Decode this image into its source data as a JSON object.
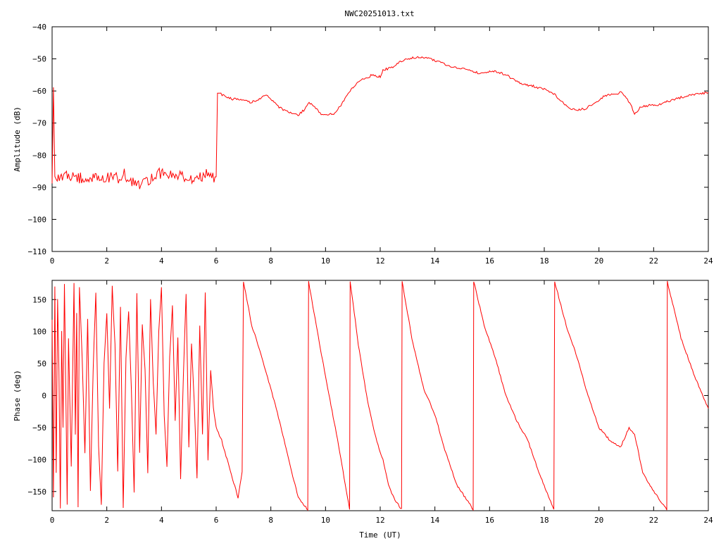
{
  "title": "NWC20251013.txt",
  "chart_data": [
    {
      "type": "line",
      "name": "amplitude-panel",
      "xlabel": "",
      "ylabel": "Amplitude (dB)",
      "xlim": [
        0,
        24
      ],
      "ylim": [
        -110,
        -40
      ],
      "xticks": [
        0,
        2,
        4,
        6,
        8,
        10,
        12,
        14,
        16,
        18,
        20,
        22,
        24
      ],
      "yticks": [
        -110,
        -100,
        -90,
        -80,
        -70,
        -60,
        -50,
        -40
      ],
      "ytick_labels": [
        "−110",
        "−100",
        "−90",
        "−80",
        "−70",
        "−60",
        "−50",
        "−40"
      ],
      "color": "#ff0000",
      "grid": false,
      "series": [
        {
          "x": [
            0.0,
            0.05,
            0.1,
            0.15,
            0.3,
            0.6,
            1.0,
            1.5,
            2.0,
            2.5,
            2.6,
            2.8,
            3.0,
            3.2,
            3.4,
            3.6,
            3.8,
            4.0,
            4.3,
            4.6,
            4.8,
            5.0,
            5.3,
            5.6,
            5.8,
            6.0,
            6.05,
            6.3,
            6.6,
            6.9,
            7.2,
            7.5,
            7.7,
            7.8,
            8.0,
            8.3,
            8.6,
            9.0,
            9.2,
            9.4,
            9.6,
            9.8,
            10.0,
            10.3,
            10.6,
            10.9,
            11.2,
            11.5,
            11.7,
            11.9,
            12.0,
            12.1,
            12.3,
            12.5,
            12.7,
            13.0,
            13.3,
            13.6,
            14.0,
            14.3,
            14.6,
            15.0,
            15.3,
            15.6,
            16.0,
            16.3,
            16.6,
            17.0,
            17.3,
            17.6,
            18.0,
            18.3,
            18.6,
            18.9,
            19.2,
            19.5,
            19.8,
            20.0,
            20.2,
            20.5,
            20.8,
            21.0,
            21.2,
            21.3,
            21.5,
            21.8,
            22.0,
            22.3,
            22.6,
            23.0,
            23.3,
            23.6,
            24.0
          ],
          "y": [
            -87,
            -60,
            -87,
            -86.5,
            -87.5,
            -86.5,
            -87,
            -86.8,
            -87.2,
            -87,
            -85,
            -87.5,
            -88.5,
            -89.5,
            -88.5,
            -87.5,
            -86,
            -85.5,
            -85.5,
            -86,
            -87,
            -87.5,
            -87.5,
            -86,
            -86.5,
            -87,
            -60.5,
            -61.5,
            -62.5,
            -62.5,
            -63.5,
            -63,
            -62,
            -61,
            -62.5,
            -65,
            -66.5,
            -67.5,
            -66,
            -63.5,
            -65,
            -67,
            -67.5,
            -67,
            -64,
            -60,
            -57,
            -56,
            -55,
            -55.5,
            -55.5,
            -53.5,
            -53,
            -52.5,
            -51,
            -50,
            -49.5,
            -49.5,
            -50.5,
            -51.5,
            -52.5,
            -53,
            -53.5,
            -54.5,
            -54,
            -54,
            -55,
            -57,
            -58,
            -58.5,
            -59.5,
            -60.5,
            -63,
            -65.5,
            -66,
            -65.5,
            -64,
            -63,
            -61.5,
            -61,
            -60.5,
            -62,
            -65,
            -67.5,
            -65,
            -64.5,
            -64.5,
            -64,
            -63,
            -62,
            -61.5,
            -61,
            -60.5
          ]
        }
      ]
    },
    {
      "type": "line",
      "name": "phase-panel",
      "xlabel": "Time (UT)",
      "ylabel": "Phase (deg)",
      "xlim": [
        0,
        24
      ],
      "ylim": [
        -180,
        180
      ],
      "xticks": [
        0,
        2,
        4,
        6,
        8,
        10,
        12,
        14,
        16,
        18,
        20,
        22,
        24
      ],
      "yticks": [
        -150,
        -100,
        -50,
        0,
        50,
        100,
        150
      ],
      "ytick_labels": [
        "−150",
        "−100",
        "−50",
        "0",
        "50",
        "100",
        "150"
      ],
      "color": "#ff0000",
      "grid": false,
      "series": [
        {
          "x": [
            0.0,
            0.05,
            0.1,
            0.15,
            0.2,
            0.25,
            0.3,
            0.35,
            0.4,
            0.45,
            0.5,
            0.55,
            0.6,
            0.7,
            0.8,
            0.85,
            0.9,
            0.95,
            1.0,
            1.1,
            1.2,
            1.3,
            1.4,
            1.5,
            1.6,
            1.7,
            1.8,
            1.9,
            2.0,
            2.1,
            2.2,
            2.3,
            2.4,
            2.5,
            2.6,
            2.7,
            2.8,
            2.9,
            3.0,
            3.1,
            3.2,
            3.3,
            3.4,
            3.5,
            3.6,
            3.7,
            3.8,
            3.9,
            4.0,
            4.1,
            4.2,
            4.3,
            4.4,
            4.5,
            4.6,
            4.7,
            4.8,
            4.9,
            5.0,
            5.1,
            5.2,
            5.3,
            5.4,
            5.5,
            5.6,
            5.7,
            5.8,
            5.9,
            6.0,
            6.2,
            6.4,
            6.6,
            6.8,
            6.95,
            7.0,
            7.3,
            7.6,
            7.8,
            8.2,
            8.6,
            9.0,
            9.35,
            9.38,
            9.7,
            10.0,
            10.4,
            10.88,
            10.9,
            11.2,
            11.5,
            11.8,
            12.0,
            12.1,
            12.3,
            12.5,
            12.78,
            12.8,
            13.2,
            13.6,
            14.0,
            14.4,
            14.8,
            15.4,
            15.42,
            15.8,
            16.2,
            16.6,
            17.0,
            17.4,
            17.8,
            18.35,
            18.38,
            18.8,
            19.2,
            19.6,
            20.0,
            20.4,
            20.8,
            21.1,
            21.3,
            21.6,
            22.0,
            22.48,
            22.5,
            23.0,
            23.5,
            24.0
          ],
          "y": [
            120,
            -160,
            170,
            -120,
            150,
            40,
            -175,
            100,
            -50,
            175,
            20,
            -170,
            90,
            -110,
            175,
            -60,
            130,
            -175,
            170,
            60,
            -90,
            120,
            -150,
            40,
            160,
            -80,
            -170,
            50,
            130,
            -20,
            170,
            80,
            -120,
            140,
            -175,
            60,
            130,
            10,
            -150,
            160,
            -90,
            110,
            40,
            -120,
            150,
            20,
            -60,
            100,
            170,
            -30,
            -110,
            60,
            140,
            -40,
            90,
            -130,
            30,
            160,
            -80,
            80,
            -10,
            -130,
            110,
            -60,
            160,
            -100,
            40,
            -20,
            -50,
            -70,
            -100,
            -130,
            -160,
            -120,
            178,
            110,
            70,
            40,
            -20,
            -90,
            -160,
            -178,
            178,
            100,
            30,
            -60,
            -178,
            178,
            80,
            0,
            -60,
            -90,
            -100,
            -140,
            -160,
            -178,
            178,
            80,
            10,
            -30,
            -90,
            -140,
            -178,
            178,
            110,
            60,
            0,
            -40,
            -70,
            -120,
            -178,
            178,
            110,
            60,
            0,
            -50,
            -70,
            -80,
            -50,
            -60,
            -120,
            -150,
            -178,
            178,
            90,
            30,
            -20
          ]
        }
      ]
    }
  ]
}
